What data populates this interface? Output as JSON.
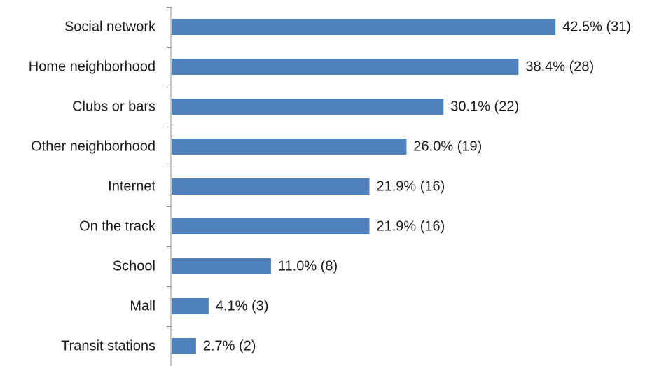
{
  "chart_data": {
    "type": "bar",
    "orientation": "horizontal",
    "categories": [
      "Social network",
      "Home neighborhood",
      "Clubs or bars",
      "Other neighborhood",
      "Internet",
      "On the track",
      "School",
      "Mall",
      "Transit stations"
    ],
    "values": [
      42.5,
      38.4,
      30.1,
      26.0,
      21.9,
      21.9,
      11.0,
      4.1,
      2.7
    ],
    "counts": [
      31,
      28,
      22,
      19,
      16,
      16,
      8,
      3,
      2
    ],
    "data_labels": [
      "42.5% (31)",
      "38.4% (28)",
      "30.1% (22)",
      "26.0% (19)",
      "21.9% (16)",
      "21.9% (16)",
      "11.0% (8)",
      "4.1% (3)",
      "2.7% (2)"
    ],
    "xlim": [
      0,
      50
    ],
    "grid": false,
    "legend": "none",
    "bar_color": "#4f81bd",
    "axis_color": "#8c8c8c"
  }
}
